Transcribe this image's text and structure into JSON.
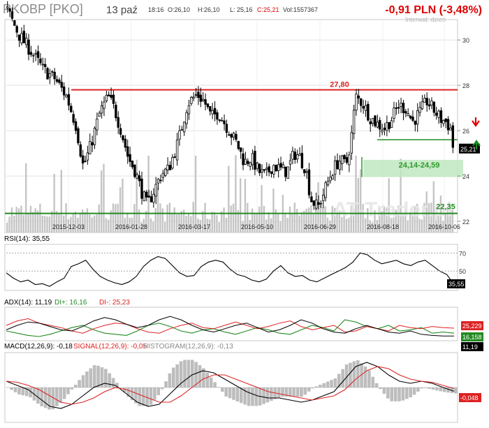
{
  "header": {
    "ticker": "PKOBP [PKO]",
    "date": "13 paź",
    "quote": {
      "time": "18:16",
      "open": "O:26,10",
      "high": "H:26,10",
      "low": "L: 25,16",
      "close": "C:25,21",
      "volume": "Vol:1557367"
    },
    "change": "-0,91 PLN (-3,48%)",
    "interval": "Interwał: dzień"
  },
  "watermark": "AT-Trader.pl",
  "colors": {
    "up": "#cc0000",
    "green": "#228b22",
    "grid": "#d8d8d8",
    "volume": "#c4c4c4",
    "black": "#000000"
  },
  "chart_data": [
    {
      "type": "candlestick",
      "x_ticks": [
        "2015-12-03",
        "2016-01-28",
        "2016-03-17",
        "2016-05-10",
        "2016-06-29",
        "2016-08-18",
        "2016-10-06"
      ],
      "y_ticks": [
        22,
        24,
        26,
        28,
        30
      ],
      "ylim": [
        21.6,
        30.9
      ],
      "last_price_label": "25,21",
      "last_price": 25.21,
      "close_path": [
        [
          0,
          31.3
        ],
        [
          10,
          30.2
        ],
        [
          20,
          29.5
        ],
        [
          30,
          28.7
        ],
        [
          40,
          28.3
        ],
        [
          50,
          27.5
        ],
        [
          58,
          26.2
        ],
        [
          64,
          24.4
        ],
        [
          70,
          25.3
        ],
        [
          78,
          26.8
        ],
        [
          85,
          27.5
        ],
        [
          90,
          27.0
        ],
        [
          96,
          26.0
        ],
        [
          102,
          24.8
        ],
        [
          108,
          24.2
        ],
        [
          114,
          23.2
        ],
        [
          118,
          22.7
        ],
        [
          124,
          23.4
        ],
        [
          130,
          24.1
        ],
        [
          136,
          24.3
        ],
        [
          144,
          25.5
        ],
        [
          152,
          27.2
        ],
        [
          160,
          27.6
        ],
        [
          166,
          27.3
        ],
        [
          172,
          26.6
        ],
        [
          178,
          26.8
        ],
        [
          186,
          26.1
        ],
        [
          194,
          25.4
        ],
        [
          200,
          24.6
        ],
        [
          206,
          24.8
        ],
        [
          212,
          24.2
        ],
        [
          218,
          24.0
        ],
        [
          224,
          24.5
        ],
        [
          230,
          24.3
        ],
        [
          236,
          24.2
        ],
        [
          242,
          25.0
        ],
        [
          246,
          24.9
        ],
        [
          252,
          24.3
        ],
        [
          256,
          23.0
        ],
        [
          262,
          22.6
        ],
        [
          268,
          23.4
        ],
        [
          274,
          24.2
        ],
        [
          280,
          24.7
        ],
        [
          286,
          24.5
        ],
        [
          290,
          25.6
        ],
        [
          294,
          27.5
        ],
        [
          300,
          27.2
        ],
        [
          306,
          26.6
        ],
        [
          312,
          26.3
        ],
        [
          318,
          26.1
        ],
        [
          324,
          26.5
        ],
        [
          330,
          27.1
        ],
        [
          336,
          27.0
        ],
        [
          342,
          26.4
        ],
        [
          348,
          26.8
        ],
        [
          354,
          27.3
        ],
        [
          360,
          26.9
        ],
        [
          366,
          26.5
        ],
        [
          370,
          26.4
        ],
        [
          374,
          26.1
        ],
        [
          376,
          25.3
        ]
      ],
      "levels": [
        {
          "label": "27,80",
          "value": 27.8,
          "color": "#dd2222"
        },
        {
          "label": "24,14-24,59",
          "from": 24.14,
          "to": 24.59,
          "color": "#2e9a2e"
        },
        {
          "label": "22,35",
          "value": 22.35,
          "color": "#228b22"
        }
      ],
      "signals": [
        {
          "type": "sell-arrow",
          "color": "#dd0000"
        },
        {
          "type": "buy-arrow",
          "color": "#1a8a1a"
        }
      ]
    },
    {
      "type": "line",
      "title": "RSI(14): 35,55",
      "ylim": [
        30,
        78
      ],
      "y_ticks": [
        50,
        70
      ],
      "current_label": "35,55",
      "series": [
        {
          "name": "RSI",
          "color": "#000000",
          "values": [
            48,
            42,
            38,
            40,
            35,
            36,
            33,
            38,
            42,
            55,
            58,
            62,
            52,
            44,
            40,
            37,
            35,
            38,
            44,
            55,
            62,
            66,
            64,
            56,
            48,
            44,
            45,
            55,
            60,
            62,
            60,
            52,
            46,
            44,
            40,
            38,
            41,
            50,
            56,
            48,
            44,
            45,
            40,
            38,
            42,
            46,
            50,
            54,
            60,
            70,
            68,
            62,
            58,
            60,
            62,
            58,
            56,
            60,
            62,
            56,
            50,
            46,
            35
          ]
        }
      ]
    },
    {
      "type": "line",
      "title": "ADX(14): 11,19",
      "ylim": [
        5,
        60
      ],
      "series": [
        {
          "name": "DI+: 16,16",
          "color": "#228b22",
          "values": [
            20,
            16,
            12,
            10,
            14,
            20,
            26,
            30,
            22,
            16,
            14,
            12,
            20,
            30,
            34,
            28,
            20,
            16,
            22,
            24,
            18,
            14,
            20,
            26,
            22,
            16,
            14,
            22,
            30,
            26,
            20,
            40,
            36,
            28,
            24,
            30,
            20,
            22,
            26,
            16,
            18,
            16
          ]
        },
        {
          "name": "DI-: 25,23",
          "color": "#dd2222",
          "values": [
            30,
            38,
            42,
            34,
            30,
            26,
            20,
            16,
            24,
            30,
            34,
            32,
            24,
            18,
            16,
            24,
            30,
            34,
            26,
            24,
            30,
            36,
            30,
            24,
            28,
            34,
            38,
            28,
            22,
            26,
            30,
            18,
            20,
            28,
            24,
            20,
            30,
            26,
            24,
            28,
            26,
            25
          ]
        },
        {
          "name": "ADX",
          "color": "#000000",
          "values": [
            22,
            30,
            36,
            34,
            28,
            22,
            20,
            28,
            38,
            44,
            40,
            32,
            26,
            30,
            40,
            46,
            40,
            30,
            22,
            18,
            24,
            30,
            34,
            26,
            18,
            22,
            30,
            40,
            34,
            24,
            18,
            16,
            24,
            30,
            24,
            18,
            16,
            20,
            14,
            12,
            11,
            11
          ]
        }
      ],
      "value_labels": [
        "25,229",
        "16,158",
        "11,19"
      ]
    },
    {
      "type": "line",
      "title": "MACD(12,26,9): -0,18",
      "series": [
        {
          "name": "MACD",
          "color": "#000000",
          "values": [
            0.3,
            0.1,
            -0.1,
            -0.5,
            -0.9,
            -1.0,
            -0.8,
            -0.4,
            0.0,
            0.2,
            0.1,
            -0.3,
            -0.7,
            -0.9,
            -0.8,
            -0.3,
            0.2,
            0.6,
            0.8,
            0.7,
            0.4,
            0.1,
            -0.2,
            -0.4,
            -0.5,
            -0.5,
            -0.6,
            -0.7,
            -0.6,
            -0.4,
            -0.2,
            0.4,
            1.0,
            1.2,
            1.0,
            0.6,
            0.3,
            0.2,
            0.3,
            0.2,
            0.0,
            -0.18
          ]
        },
        {
          "name": "SIGNAL(12,26,9): -0,05",
          "color": "#dd2222",
          "values": [
            0.3,
            0.25,
            0.1,
            -0.1,
            -0.4,
            -0.7,
            -0.8,
            -0.7,
            -0.5,
            -0.2,
            0.0,
            -0.1,
            -0.3,
            -0.5,
            -0.7,
            -0.7,
            -0.4,
            0.0,
            0.4,
            0.6,
            0.6,
            0.4,
            0.2,
            0.0,
            -0.2,
            -0.3,
            -0.4,
            -0.5,
            -0.6,
            -0.5,
            -0.4,
            -0.1,
            0.4,
            0.8,
            1.0,
            0.9,
            0.6,
            0.4,
            0.3,
            0.25,
            0.1,
            -0.05
          ]
        },
        {
          "name": "HISTOGRAM(12,26,9): -0,13",
          "color": "#bdbdbd"
        }
      ],
      "value_labels": [
        "-0,048"
      ]
    }
  ]
}
